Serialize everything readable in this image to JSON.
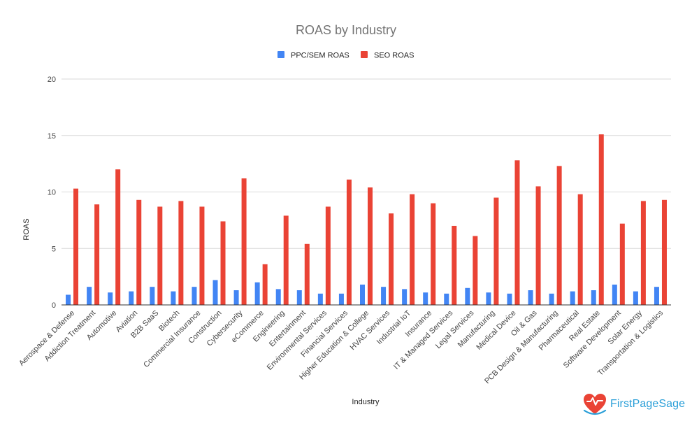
{
  "chart_data": {
    "type": "bar",
    "title": "ROAS by Industry",
    "xlabel": "Industry",
    "ylabel": "ROAS",
    "ylim": [
      0,
      20
    ],
    "yticks": [
      0,
      5,
      10,
      15,
      20
    ],
    "grid": true,
    "legend_position": "top",
    "categories": [
      "Aerospace & Defense",
      "Addiction Treatment",
      "Automotive",
      "Aviation",
      "B2B SaaS",
      "Biotech",
      "Commercial Insurance",
      "Construction",
      "Cybersecurity",
      "eCommerce",
      "Engineering",
      "Entertainment",
      "Environmental Services",
      "Financial Services",
      "Higher Education & College",
      "HVAC Services",
      "Industrial IoT",
      "Insurance",
      "IT & Managed Services",
      "Legal Services",
      "Manufacturing",
      "Medical Device",
      "Oil & Gas",
      "PCB Design & Manufacturing",
      "Pharmaceutical",
      "Real Estate",
      "Software Development",
      "Solar Energy",
      "Transportation & Logistics"
    ],
    "series": [
      {
        "name": "PPC/SEM ROAS",
        "color": "#4285f4",
        "values": [
          0.9,
          1.6,
          1.1,
          1.2,
          1.6,
          1.2,
          1.6,
          2.2,
          1.3,
          2.0,
          1.4,
          1.3,
          1.0,
          1.0,
          1.8,
          1.6,
          1.4,
          1.1,
          1.0,
          1.5,
          1.1,
          1.0,
          1.3,
          1.0,
          1.2,
          1.3,
          1.8,
          1.2,
          1.6
        ]
      },
      {
        "name": "SEO ROAS",
        "color": "#ea4335",
        "values": [
          10.3,
          8.9,
          12.0,
          9.3,
          8.7,
          9.2,
          8.7,
          7.4,
          11.2,
          3.6,
          7.9,
          5.4,
          8.7,
          11.1,
          10.4,
          8.1,
          9.8,
          9.0,
          7.0,
          6.1,
          9.5,
          12.8,
          10.5,
          12.3,
          9.8,
          15.1,
          7.2,
          9.2,
          9.3
        ]
      }
    ]
  },
  "logo": {
    "text": "FirstPageSage",
    "icon": "heart-chart-logo-icon"
  }
}
